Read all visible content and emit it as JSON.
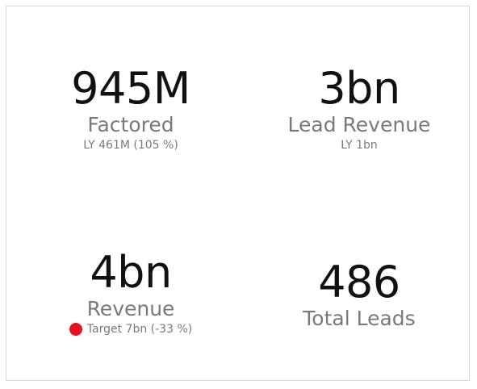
{
  "kpis": {
    "factored": {
      "value": "945M",
      "label": "Factored",
      "comparison": "LY 461M (105 %)"
    },
    "lead_revenue": {
      "value": "3bn",
      "label": "Lead Revenue",
      "comparison": "LY 1bn"
    },
    "revenue": {
      "value": "4bn",
      "label": "Revenue",
      "target": "Target 7bn (-33 %)",
      "status_color": "#e81123"
    },
    "total_leads": {
      "value": "486",
      "label": "Total Leads"
    }
  }
}
